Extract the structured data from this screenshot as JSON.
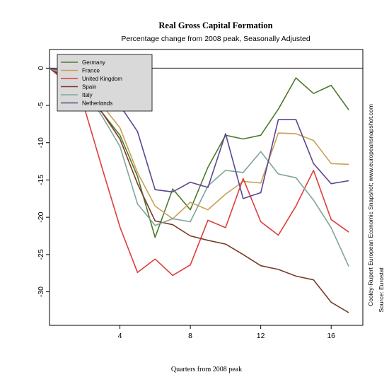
{
  "chart_data": {
    "type": "line",
    "title": "Real Gross Capital Formation",
    "subtitle": "Percentage change from 2008 peak, Seasonally Adjusted",
    "xlabel": "Quarters from 2008 peak",
    "ylabel": "",
    "source_credit": "Cooley-Rupert European Economic Snapshot; www.europeansnapshot.com",
    "source": "Source: Eurostat",
    "x": [
      0,
      1,
      2,
      3,
      4,
      5,
      6,
      7,
      8,
      9,
      10,
      11,
      12,
      13,
      14,
      15,
      16,
      17
    ],
    "xlim": [
      0,
      17.8
    ],
    "ylim": [
      -34.5,
      2.5
    ],
    "xticks": [
      4,
      8,
      12,
      16
    ],
    "yticks": [
      0,
      -5,
      -10,
      -15,
      -20,
      -25,
      -30
    ],
    "reference_line": 0,
    "grid": false,
    "legend_position": "top-left",
    "series": [
      {
        "name": "Germany",
        "color": "#4b7a2c",
        "values": [
          0,
          -1.5,
          -3.5,
          -6.0,
          -9.0,
          -14.5,
          -22.7,
          -16.2,
          -19.0,
          -13.3,
          -9.0,
          -9.5,
          -9.0,
          -5.5,
          -1.3,
          -3.4,
          -2.3,
          -5.6
        ]
      },
      {
        "name": "France",
        "color": "#c9a155",
        "values": [
          0,
          -1.0,
          -3.0,
          -5.0,
          -8.0,
          -14.0,
          -18.5,
          -20.2,
          -18.0,
          -19.0,
          -16.9,
          -15.2,
          -15.4,
          -8.7,
          -8.8,
          -9.7,
          -12.8,
          -12.9
        ]
      },
      {
        "name": "United Kingdom",
        "color": "#de3e3a",
        "values": [
          0,
          -2.0,
          -5.5,
          -13.5,
          -21.3,
          -27.4,
          -25.6,
          -27.8,
          -26.4,
          -20.4,
          -21.4,
          -14.8,
          -20.6,
          -22.4,
          -18.5,
          -13.7,
          -20.3,
          -22.0
        ]
      },
      {
        "name": "Spain",
        "color": "#7a3a26",
        "values": [
          0,
          -1.5,
          -3.5,
          -6.0,
          -9.5,
          -15.5,
          -20.5,
          -21.0,
          -22.5,
          -23.1,
          -23.6,
          -25.0,
          -26.5,
          -27.0,
          -27.9,
          -28.4,
          -31.4,
          -32.8
        ]
      },
      {
        "name": "Italy",
        "color": "#7fa596",
        "values": [
          0,
          -1.0,
          -3.0,
          -6.5,
          -10.5,
          -18.2,
          -21.1,
          -20.2,
          -20.6,
          -15.8,
          -13.7,
          -14.0,
          -11.2,
          -14.2,
          -14.7,
          -17.7,
          -21.4,
          -26.6
        ]
      },
      {
        "name": "Netherlands",
        "color": "#5e4590",
        "values": [
          0,
          -0.5,
          -2.0,
          -4.0,
          -5.0,
          -8.5,
          -16.3,
          -16.6,
          -15.3,
          -16.0,
          -8.8,
          -17.5,
          -16.7,
          -6.9,
          -6.9,
          -12.8,
          -15.5,
          -15.1
        ]
      }
    ]
  }
}
